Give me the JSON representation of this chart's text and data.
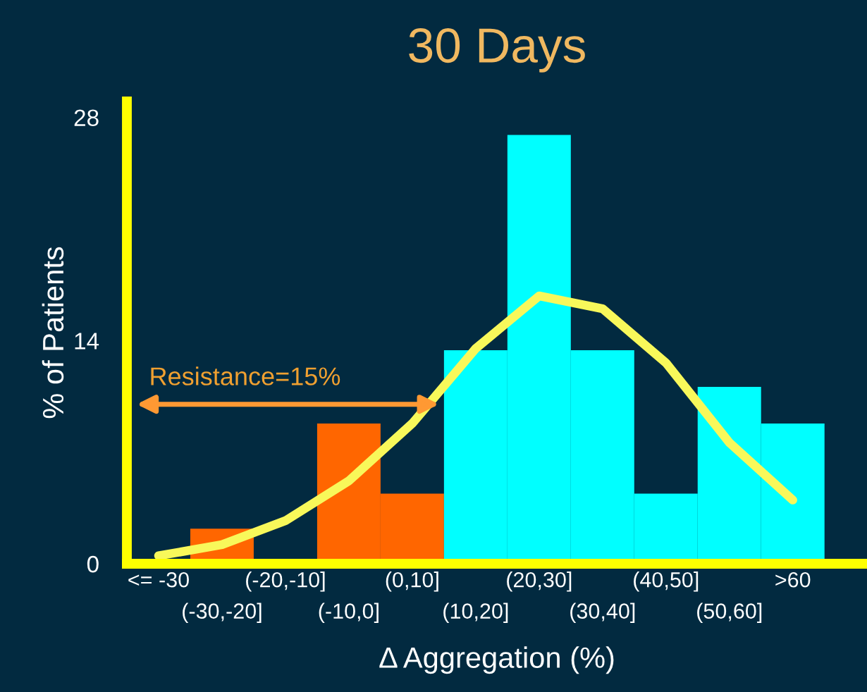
{
  "chart_data": {
    "type": "bar",
    "title": "30 Days",
    "xlabel": "Δ Aggregation (%)",
    "ylabel": "% of Patients",
    "categories": [
      "<= -30",
      "(-30,-20]",
      "(-20,-10]",
      "(-10,0]",
      "(0,10]",
      "(10,20]",
      "(20,30]",
      "(30,40]",
      "(40,50]",
      "(50,60]",
      ">60"
    ],
    "series": [
      {
        "values": [
          0,
          2.2,
          0,
          8.8,
          4.4,
          13.4,
          26.9,
          13.4,
          4.4,
          11.1,
          8.8
        ],
        "colors": [
          "#ff6600",
          "#ff6600",
          "#ff6600",
          "#ff6600",
          "#ff6600",
          "#00ffff",
          "#00ffff",
          "#00ffff",
          "#00ffff",
          "#00ffff",
          "#00ffff"
        ]
      },
      {
        "type": "line",
        "color": "#f8f85a",
        "values": [
          0.5,
          1.2,
          2.7,
          5.2,
          8.8,
          13.5,
          16.8,
          16.0,
          12.6,
          7.6,
          4.0
        ]
      }
    ],
    "annotations": [
      "Resistance=15%"
    ],
    "ylim": [
      0,
      29
    ],
    "yticks": [
      0,
      14,
      28
    ],
    "grid": false,
    "legend": false
  }
}
